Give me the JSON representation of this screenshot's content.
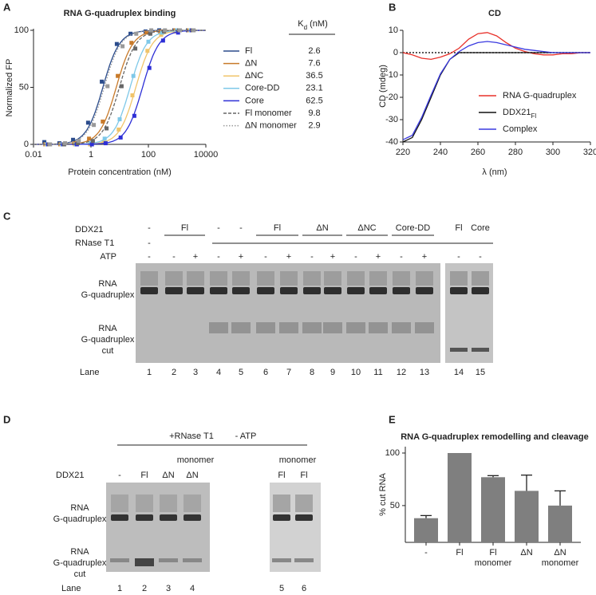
{
  "panel_labels": [
    "A",
    "B",
    "C",
    "D",
    "E"
  ],
  "chart_data": [
    {
      "type": "scatter",
      "title": "RNA G-quadruplex binding",
      "x_label": "Protein concentration (nM)",
      "y_label": "Normalized FP",
      "log_x": true,
      "xlim": [
        0.01,
        10000
      ],
      "xticks": [
        0.01,
        1,
        100,
        10000
      ],
      "ylim": [
        0,
        100
      ],
      "yticks": [
        0,
        50,
        100
      ],
      "legend_header": {
        "main": "K",
        "sub": "d",
        "rest": " (nM)"
      },
      "x": [
        0.03,
        0.1,
        0.3,
        1,
        3,
        10,
        30,
        100,
        300,
        1000,
        3000
      ],
      "series": [
        {
          "name": "Fl",
          "kd": 2.6,
          "color": "#2b4c8c",
          "dash": "solid",
          "values": [
            2,
            1,
            4,
            19,
            55,
            88,
            97,
            99,
            100,
            100,
            100
          ]
        },
        {
          "name": "ΔN",
          "kd": 7.6,
          "color": "#c87a2a",
          "dash": "solid",
          "values": [
            0,
            0,
            1,
            5,
            20,
            60,
            89,
            98,
            99,
            100,
            100
          ]
        },
        {
          "name": "ΔNC",
          "kd": 36.5,
          "color": "#f0c46a",
          "dash": "solid",
          "values": [
            0,
            0,
            0,
            0,
            2,
            13,
            43,
            82,
            96,
            99,
            100
          ]
        },
        {
          "name": "Core-DD",
          "kd": 23.1,
          "color": "#7ec8e8",
          "dash": "solid",
          "values": [
            0,
            0,
            0,
            1,
            5,
            22,
            60,
            90,
            98,
            100,
            100
          ]
        },
        {
          "name": "Core",
          "kd": 62.5,
          "color": "#2d2fd6",
          "dash": "solid",
          "values": [
            0,
            0,
            0,
            0,
            1,
            6,
            25,
            67,
            91,
            98,
            100
          ]
        },
        {
          "name": "Fl monomer",
          "kd": 9.8,
          "color": "#666666",
          "dash": "dashed",
          "values": [
            0,
            0,
            1,
            3,
            14,
            51,
            84,
            97,
            99,
            100,
            100
          ]
        },
        {
          "name": "ΔN monomer",
          "kd": 2.9,
          "color": "#999999",
          "dash": "dotted",
          "values": [
            0,
            1,
            3,
            17,
            51,
            86,
            97,
            100,
            100,
            100,
            100
          ]
        }
      ]
    },
    {
      "type": "line",
      "title": "CD",
      "x_label": "λ (nm)",
      "y_label": "CD (mdeg)",
      "zero_line": true,
      "xlim": [
        220,
        320
      ],
      "xticks": [
        220,
        240,
        260,
        280,
        300,
        320
      ],
      "ylim": [
        -40,
        10
      ],
      "yticks": [
        -40,
        -30,
        -20,
        -10,
        0,
        10
      ],
      "x": [
        220,
        225,
        230,
        235,
        240,
        245,
        250,
        255,
        260,
        265,
        270,
        275,
        280,
        285,
        290,
        295,
        300,
        305,
        310,
        315,
        320
      ],
      "series": [
        {
          "name": "RNA G-quadruplex",
          "color": "#e8312a",
          "values": [
            0,
            -1,
            -2.5,
            -3,
            -2,
            -0.5,
            2,
            6,
            8.5,
            9,
            7.5,
            4.5,
            2,
            0.5,
            -0.5,
            -1,
            -1,
            -0.5,
            -0.5,
            0,
            0
          ]
        },
        {
          "name": "DDX21",
          "name_sub": "Fl",
          "color": "#111111",
          "values": [
            -40,
            -38,
            -30,
            -20,
            -10,
            -3,
            0,
            0,
            0,
            0,
            0,
            0,
            0,
            0,
            0,
            0,
            0,
            0,
            0,
            0,
            0
          ]
        },
        {
          "name": "Complex",
          "color": "#3a3ae0",
          "values": [
            -39,
            -37,
            -29,
            -19,
            -9.5,
            -3,
            0.5,
            3,
            4.5,
            5,
            4.5,
            3.5,
            2.5,
            1.5,
            1,
            0.5,
            0,
            0,
            0,
            0,
            0
          ]
        }
      ]
    },
    {
      "type": "bar",
      "title": "RNA G-quadruplex remodelling and cleavage",
      "y_label": "% cut RNA",
      "categories": [
        "-",
        "Fl",
        "Fl monomer",
        "ΔN",
        "ΔN monomer"
      ],
      "values": [
        38,
        100,
        77,
        64,
        50
      ],
      "errors": [
        2.5,
        null,
        1.5,
        15,
        14
      ],
      "color": "#7f7f7f",
      "ylim": [
        15,
        100
      ],
      "yticks": [
        50,
        100
      ]
    }
  ],
  "gel_c": {
    "row_labels": [
      "DDX21",
      "RNase T1",
      "ATP"
    ],
    "ddx21": [
      "-",
      "Fl",
      "-",
      "-",
      "Fl",
      "ΔN",
      "ΔNC",
      "Core-DD",
      "Fl",
      "Core"
    ],
    "rnase_t1": "-",
    "atp": [
      "-",
      "-",
      "+",
      "-",
      "+",
      "-",
      "+",
      "-",
      "+",
      "-",
      "+",
      "-",
      "+",
      "-",
      "-"
    ],
    "band_labels": {
      "intact": [
        "RNA",
        "G-quadruplex"
      ],
      "cut": [
        "RNA",
        "G-quadruplex",
        "cut"
      ]
    },
    "lane_label": "Lane",
    "lanes": [
      1,
      2,
      3,
      4,
      5,
      6,
      7,
      8,
      9,
      10,
      11,
      12,
      13,
      14,
      15
    ]
  },
  "gel_d": {
    "header": [
      "+RNase T1",
      "- ATP"
    ],
    "monomer": [
      "monomer",
      "monomer"
    ],
    "row_label": "DDX21",
    "ddx21": [
      "-",
      "Fl",
      "ΔN",
      "ΔN",
      "Fl",
      "Fl"
    ],
    "band_labels": {
      "intact": [
        "RNA",
        "G-quadruplex"
      ],
      "cut": [
        "RNA",
        "G-quadruplex",
        "cut"
      ]
    },
    "lane_label": "Lane",
    "lanes": [
      1,
      2,
      3,
      4,
      5,
      6
    ]
  }
}
